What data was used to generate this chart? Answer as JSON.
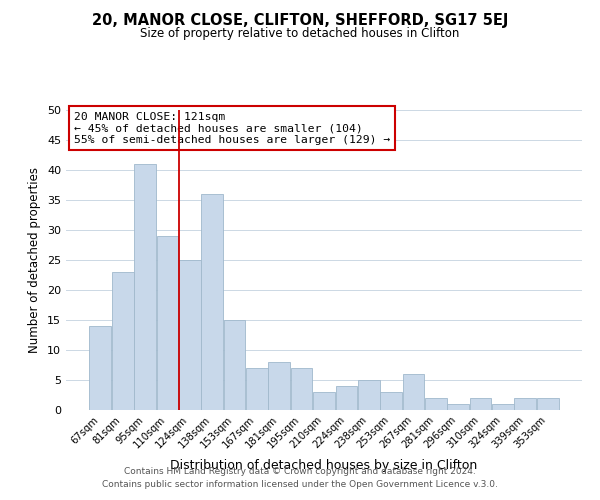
{
  "title1": "20, MANOR CLOSE, CLIFTON, SHEFFORD, SG17 5EJ",
  "title2": "Size of property relative to detached houses in Clifton",
  "xlabel": "Distribution of detached houses by size in Clifton",
  "ylabel": "Number of detached properties",
  "bin_labels": [
    "67sqm",
    "81sqm",
    "95sqm",
    "110sqm",
    "124sqm",
    "138sqm",
    "153sqm",
    "167sqm",
    "181sqm",
    "195sqm",
    "210sqm",
    "224sqm",
    "238sqm",
    "253sqm",
    "267sqm",
    "281sqm",
    "296sqm",
    "310sqm",
    "324sqm",
    "339sqm",
    "353sqm"
  ],
  "bar_heights": [
    14,
    23,
    41,
    29,
    25,
    36,
    15,
    7,
    8,
    7,
    3,
    4,
    5,
    3,
    6,
    2,
    1,
    2,
    1,
    2,
    2
  ],
  "bar_color": "#c8d8ea",
  "bar_edge_color": "#a0b8cc",
  "highlight_line_color": "#cc0000",
  "ylim": [
    0,
    50
  ],
  "yticks": [
    0,
    5,
    10,
    15,
    20,
    25,
    30,
    35,
    40,
    45,
    50
  ],
  "annotation_text": "20 MANOR CLOSE: 121sqm\n← 45% of detached houses are smaller (104)\n55% of semi-detached houses are larger (129) →",
  "annotation_box_color": "#ffffff",
  "annotation_box_edge": "#cc0000",
  "footer1": "Contains HM Land Registry data © Crown copyright and database right 2024.",
  "footer2": "Contains public sector information licensed under the Open Government Licence v.3.0.",
  "background_color": "#ffffff",
  "grid_color": "#ccd8e4"
}
